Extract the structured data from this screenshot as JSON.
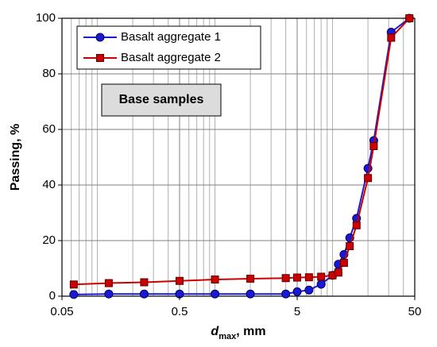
{
  "chart_data": {
    "type": "line",
    "x_label": {
      "main": "d",
      "sub": "max",
      "rest": ", mm"
    },
    "y_label": "Passing, %",
    "annotation": "Base samples",
    "x_scale": "log",
    "xlim": [
      0.05,
      50
    ],
    "xticks": [
      0.05,
      0.5,
      5,
      50
    ],
    "x_minor_grid": [
      0.06,
      0.07,
      0.08,
      0.09,
      0.1,
      0.2,
      0.3,
      0.4,
      0.6,
      0.7,
      0.8,
      0.9,
      1,
      2,
      3,
      4,
      6,
      7,
      8,
      9,
      10,
      20,
      30,
      40
    ],
    "ylim": [
      0,
      100
    ],
    "yticks": [
      0,
      20,
      40,
      60,
      80,
      100
    ],
    "grid": true,
    "legend": "upper left",
    "x": [
      0.063,
      0.125,
      0.25,
      0.5,
      1,
      2,
      4,
      5,
      6.3,
      8,
      10,
      11.2,
      12.5,
      14,
      16,
      20,
      22.4,
      31.5,
      45
    ],
    "series": [
      {
        "name": "Basalt aggregate 1",
        "color": "#1a1ad6",
        "marker": "circle",
        "values": [
          0.6,
          0.8,
          0.8,
          0.8,
          0.8,
          0.8,
          0.8,
          1.6,
          2.2,
          4.3,
          7.5,
          11.5,
          15,
          21,
          28,
          46,
          56,
          95,
          100
        ]
      },
      {
        "name": "Basalt aggregate 2",
        "color": "#cc0000",
        "marker": "square",
        "values": [
          4.2,
          4.7,
          5.0,
          5.5,
          6.0,
          6.3,
          6.5,
          6.7,
          6.8,
          7.0,
          7.5,
          8.5,
          12,
          18,
          25.5,
          42.5,
          54,
          93,
          100
        ]
      }
    ]
  }
}
